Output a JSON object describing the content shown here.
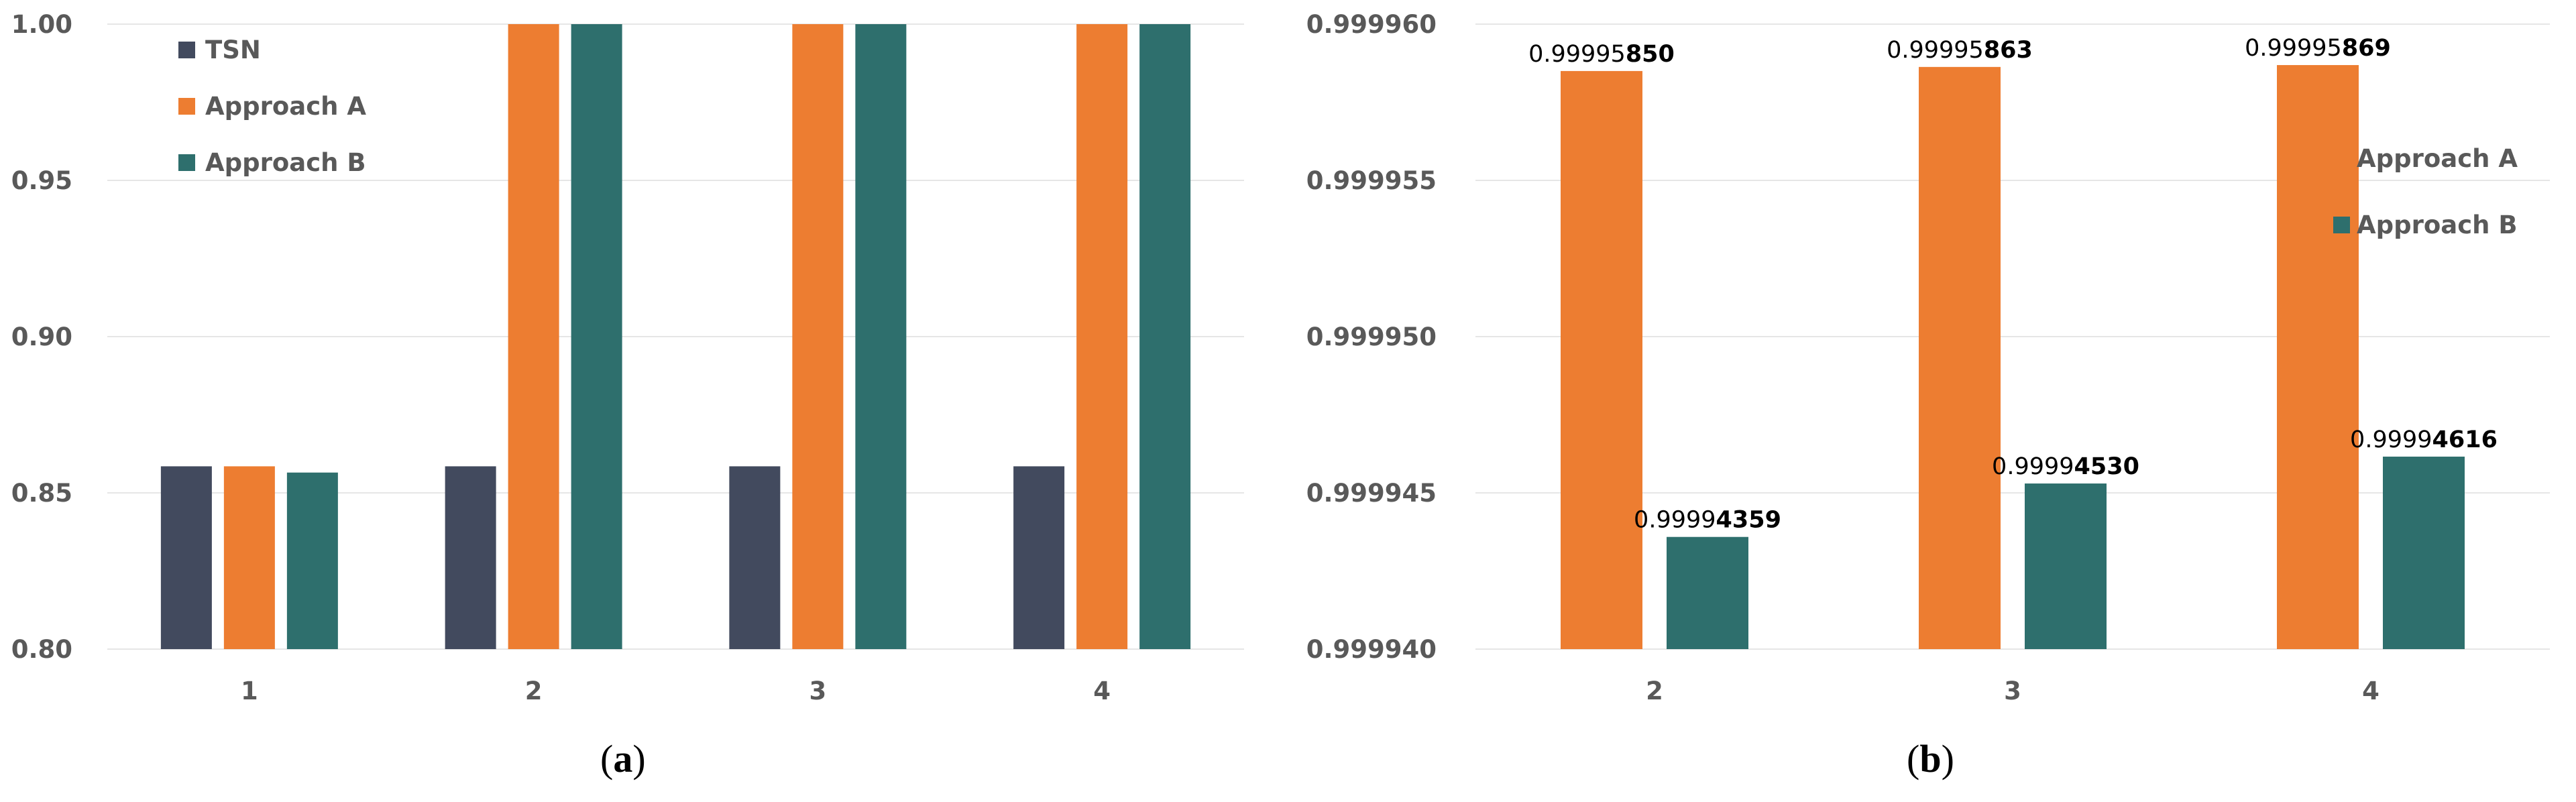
{
  "colors": {
    "tsn": "#424a5e",
    "approach_a": "#ed7d31",
    "approach_b": "#2e6f6d",
    "gridline": "#e6e6e6",
    "axis_text": "#595959"
  },
  "captions": {
    "a": "a",
    "b": "b"
  },
  "chart_data": [
    {
      "type": "bar",
      "categories": [
        "1",
        "2",
        "3",
        "4"
      ],
      "ylim": [
        0.8,
        1.0
      ],
      "yticks": [
        "0.80",
        "0.85",
        "0.90",
        "0.95",
        "1.00"
      ],
      "tick_values": [
        0.8,
        0.85,
        0.9,
        0.95,
        1.0
      ],
      "grid": true,
      "legend": "top-left",
      "series": [
        {
          "name": "TSN",
          "color_key": "tsn",
          "values": [
            0.8585,
            0.8585,
            0.8585,
            0.8585
          ]
        },
        {
          "name": "Approach A",
          "color_key": "approach_a",
          "values": [
            0.8585,
            1.0,
            1.0,
            1.0
          ]
        },
        {
          "name": "Approach B",
          "color_key": "approach_b",
          "values": [
            0.8565,
            1.0,
            1.0,
            1.0
          ]
        }
      ]
    },
    {
      "type": "bar",
      "categories": [
        "2",
        "3",
        "4"
      ],
      "ylim": [
        0.99994,
        0.99996
      ],
      "yticks": [
        "0.999940",
        "0.999945",
        "0.999950",
        "0.999955",
        "0.999960"
      ],
      "tick_values": [
        0.99994,
        0.999945,
        0.99995,
        0.999955,
        0.99996
      ],
      "grid": true,
      "legend": "right",
      "series": [
        {
          "name": "Approach A",
          "color_key": "approach_a",
          "values": [
            0.9999585,
            0.99995863,
            0.99995869
          ],
          "labels": [
            [
              "0.99995",
              "850"
            ],
            [
              "0.99995",
              "863"
            ],
            [
              "0.99995",
              "869"
            ]
          ]
        },
        {
          "name": "Approach B",
          "color_key": "approach_b",
          "values": [
            0.99994359,
            0.9999453,
            0.99994616
          ],
          "labels": [
            [
              "0.9999",
              "4359"
            ],
            [
              "0.9999",
              "4530"
            ],
            [
              "0.9999",
              "4616"
            ]
          ]
        }
      ]
    }
  ]
}
